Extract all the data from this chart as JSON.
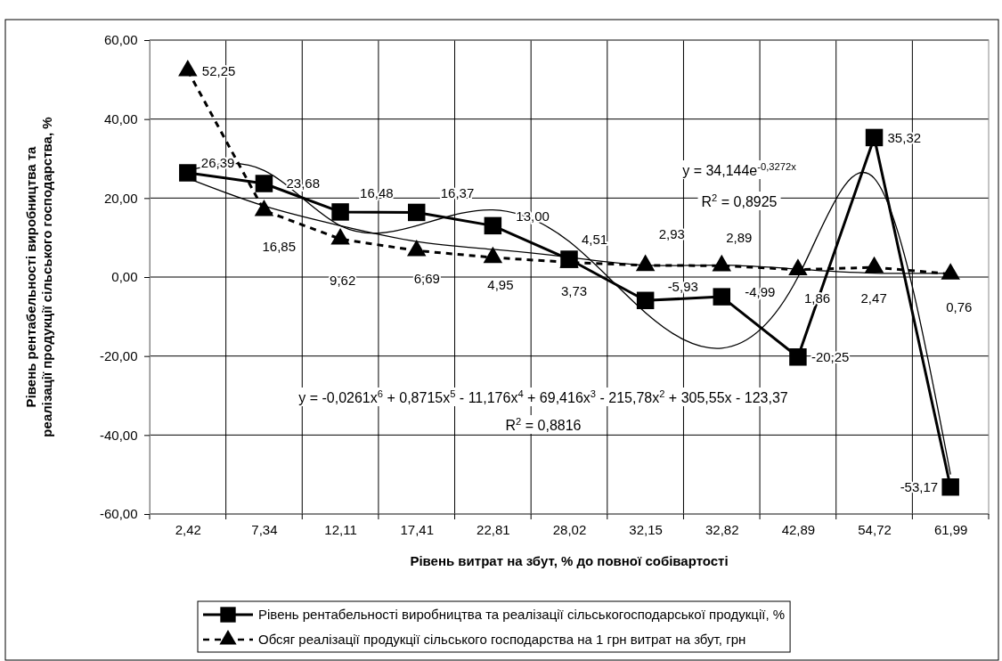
{
  "chart_data": {
    "type": "line",
    "xlabel": "Рівень витрат на збут, % до повної собівартості",
    "ylabel": "Рівень рентабельності виробництва та\nреалізації продукції сільського господарства, %",
    "categories": [
      "2,42",
      "7,34",
      "12,11",
      "17,41",
      "22,81",
      "28,02",
      "32,15",
      "32,82",
      "42,89",
      "54,72",
      "61,99"
    ],
    "ylim": [
      -60,
      60
    ],
    "yticks": [
      {
        "value": -60,
        "label": "-60,00"
      },
      {
        "value": -40,
        "label": "-40,00"
      },
      {
        "value": -20,
        "label": "-20,00"
      },
      {
        "value": 0,
        "label": "0,00"
      },
      {
        "value": 20,
        "label": "20,00"
      },
      {
        "value": 40,
        "label": "40,00"
      },
      {
        "value": 60,
        "label": "60,00"
      }
    ],
    "grid": true,
    "legend": "bottom",
    "annotations": [
      "y = 34,144e$^{-0,3272x}$",
      "R$^{2}$ = 0,8925",
      "y = -0,0261x$^{6}$ + 0,8715x$^{5}$ - 11,176x$^{4}$ + 69,416x$^{3}$ - 215,78x$^{2}$ + 305,55x - 123,37",
      "R$^{2}$ = 0,8816"
    ],
    "series": [
      {
        "name": "Рівень рентабельності виробництва та реалізації сільськогосподарської продукції, %",
        "color": "#000000",
        "marker": "square",
        "line_style": "solid",
        "values": [
          26.39,
          23.68,
          16.48,
          16.37,
          13.0,
          4.51,
          -5.93,
          -4.99,
          -20.25,
          35.32,
          -53.17
        ],
        "value_labels": [
          "26,39",
          "23,68",
          "16,48",
          "16,37",
          "13,00",
          "4,51",
          "-5,93",
          "-4,99",
          "-20,25",
          "35,32",
          "-53,17"
        ]
      },
      {
        "name": "Обсяг реалізації продукції сільського господарства на 1 грн витрат на збут, грн",
        "color": "#000000",
        "marker": "triangle",
        "line_style": "dashed",
        "values": [
          52.25,
          16.85,
          9.62,
          6.69,
          4.95,
          3.73,
          2.93,
          2.89,
          1.86,
          2.47,
          0.76
        ],
        "value_labels": [
          "52,25",
          "16,85",
          "9,62",
          "6,69",
          "4,95",
          "3,73",
          "2,93",
          "2,89",
          "1,86",
          "2,47",
          "0,76"
        ]
      },
      {
        "type": "line",
        "color": "#000000",
        "marker": "none",
        "line_style": "solid",
        "values": [
          25,
          18,
          13,
          9,
          7,
          5,
          3,
          3,
          2,
          1,
          1
        ]
      },
      {
        "type": "line",
        "color": "#000000",
        "marker": "none",
        "line_style": "solid",
        "values": [
          27,
          27,
          13,
          13,
          17,
          9,
          -9,
          -18,
          0,
          25,
          -50
        ]
      }
    ]
  }
}
